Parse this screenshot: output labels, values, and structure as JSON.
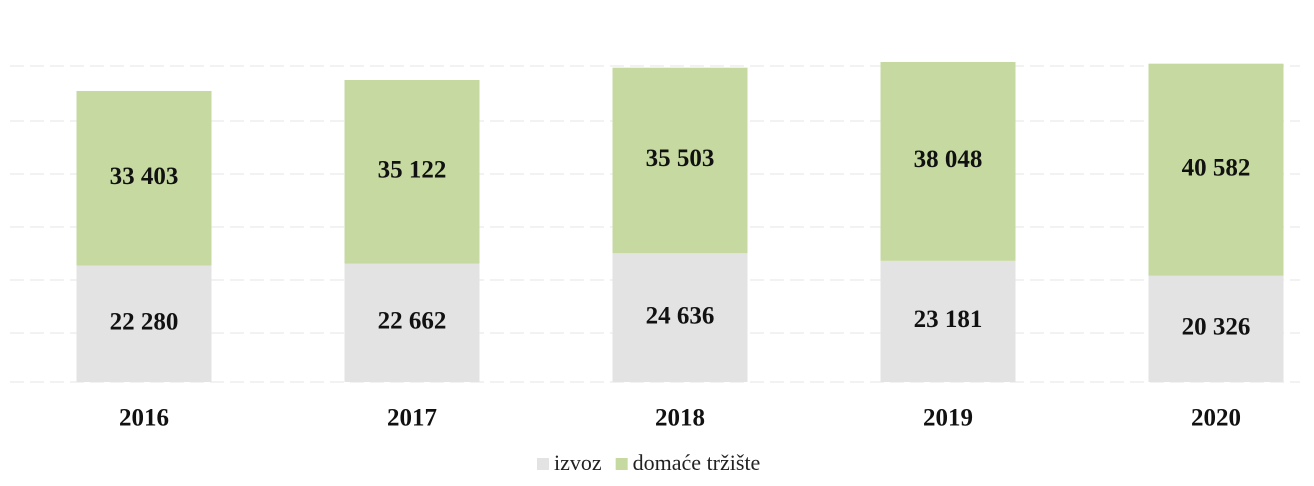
{
  "chart_data": {
    "type": "stacked_bar",
    "categories": [
      "2016",
      "2017",
      "2018",
      "2019",
      "2020"
    ],
    "series": [
      {
        "name": "izvoz",
        "color": "#e3e3e3",
        "values": [
          22280,
          22662,
          24636,
          23181,
          20326
        ],
        "value_labels": [
          "22 280",
          "22 662",
          "24 636",
          "23 181",
          "20 326"
        ]
      },
      {
        "name": "domaće tržište",
        "color": "#c6d9a0",
        "values": [
          33403,
          35122,
          35503,
          38048,
          40582
        ],
        "value_labels": [
          "33 403",
          "35 122",
          "35 503",
          "38 048",
          "40 582"
        ]
      }
    ],
    "legend": "bottom"
  }
}
